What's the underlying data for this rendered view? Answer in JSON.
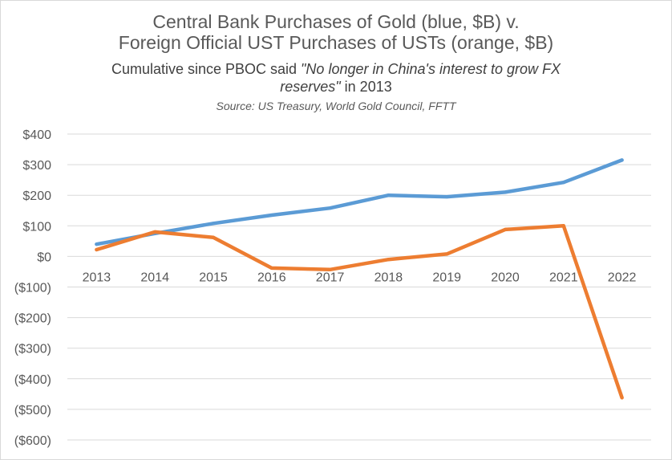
{
  "chart_data": {
    "type": "line",
    "title_line1": "Central Bank Purchases of Gold (blue, $B) v.",
    "title_line2": "Foreign Official UST Purchases of USTs (orange, $B)",
    "subtitle_pre": "Cumulative since PBOC said ",
    "subtitle_quote_a": "\"No longer in China's interest to grow FX",
    "subtitle_quote_b": "reserves\"",
    "subtitle_post": " in 2013",
    "source": "Source: US Treasury, World Gold Council, FFTT",
    "x": [
      "2013",
      "2014",
      "2015",
      "2016",
      "2017",
      "2018",
      "2019",
      "2020",
      "2021",
      "2022"
    ],
    "y_ticks": [
      400,
      300,
      200,
      100,
      0,
      -100,
      -200,
      -300,
      -400,
      -500,
      -600
    ],
    "y_tick_labels": [
      "$400",
      "$300",
      "$200",
      "$100",
      "$0",
      "($100)",
      "($200)",
      "($300)",
      "($400)",
      "($500)",
      "($600)"
    ],
    "ylim": [
      -600,
      400
    ],
    "grid": true,
    "series": [
      {
        "color": "#5b9bd5",
        "values": [
          40,
          75,
          108,
          135,
          158,
          200,
          195,
          210,
          242,
          315
        ]
      },
      {
        "color": "#ed7d31",
        "values": [
          22,
          80,
          62,
          -38,
          -43,
          -10,
          8,
          88,
          100,
          -462
        ]
      }
    ]
  }
}
